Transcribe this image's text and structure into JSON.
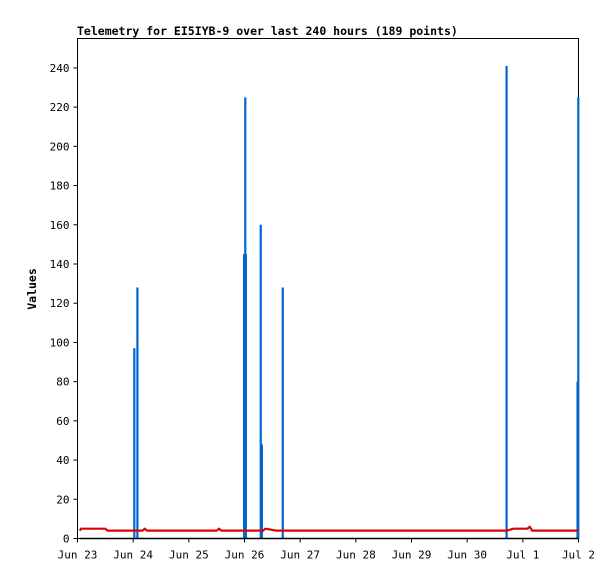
{
  "chart_data": {
    "type": "line",
    "title": "Telemetry for EI5IYB-9 over last 240 hours (189 points)",
    "ylabel": "Values",
    "xlabel": "",
    "ylim": [
      0,
      255
    ],
    "xlim": [
      "2023-06-23T00:00",
      "2023-07-02T00:00"
    ],
    "grid": false,
    "legend": "none",
    "y_ticks": [
      "0",
      "20",
      "40",
      "60",
      "80",
      "100",
      "120",
      "140",
      "160",
      "180",
      "200",
      "220",
      "240"
    ],
    "x_ticks": [
      "Jun 23",
      "Jun 24",
      "Jun 25",
      "Jun 26",
      "Jun 27",
      "Jun 28",
      "Jun 29",
      "Jun 30",
      "Jul 1",
      "Jul 2"
    ],
    "series": [
      {
        "color": "#0066cc",
        "style": "spikes",
        "points": [
          [
            "2023-06-23T01:00",
            0
          ],
          [
            "2023-06-24T00:30",
            97
          ],
          [
            "2023-06-24T01:50",
            128
          ],
          [
            "2023-06-25T23:50",
            145
          ],
          [
            "2023-06-26T00:05",
            72
          ],
          [
            "2023-06-26T00:20",
            225
          ],
          [
            "2023-06-26T00:35",
            145
          ],
          [
            "2023-06-26T07:00",
            160
          ],
          [
            "2023-06-26T07:30",
            48
          ],
          [
            "2023-06-26T16:30",
            128
          ],
          [
            "2023-06-30T17:00",
            241
          ],
          [
            "2023-07-01T23:35",
            80
          ],
          [
            "2023-07-01T23:55",
            225
          ]
        ]
      },
      {
        "color": "#dd0000",
        "style": "line",
        "points": [
          [
            "2023-06-23T01:00",
            4
          ],
          [
            "2023-06-23T01:30",
            5
          ],
          [
            "2023-06-23T12:00",
            5
          ],
          [
            "2023-06-23T13:00",
            4
          ],
          [
            "2023-06-24T02:00",
            4
          ],
          [
            "2023-06-24T04:00",
            4
          ],
          [
            "2023-06-24T05:00",
            5
          ],
          [
            "2023-06-24T06:00",
            4
          ],
          [
            "2023-06-25T12:00",
            4
          ],
          [
            "2023-06-25T13:00",
            5
          ],
          [
            "2023-06-25T14:00",
            4
          ],
          [
            "2023-06-26T08:00",
            4
          ],
          [
            "2023-06-26T09:00",
            5
          ],
          [
            "2023-06-26T14:00",
            4
          ],
          [
            "2023-06-26T17:00",
            4
          ],
          [
            "2023-06-30T17:00",
            4
          ],
          [
            "2023-06-30T20:00",
            5
          ],
          [
            "2023-07-01T02:00",
            5
          ],
          [
            "2023-07-01T03:00",
            6
          ],
          [
            "2023-07-01T04:00",
            4
          ],
          [
            "2023-07-01T23:55",
            4
          ]
        ]
      },
      {
        "color": "#000000",
        "style": "line",
        "points": [
          [
            "2023-06-23T01:00",
            0
          ],
          [
            "2023-07-01T23:55",
            0
          ]
        ]
      }
    ]
  }
}
